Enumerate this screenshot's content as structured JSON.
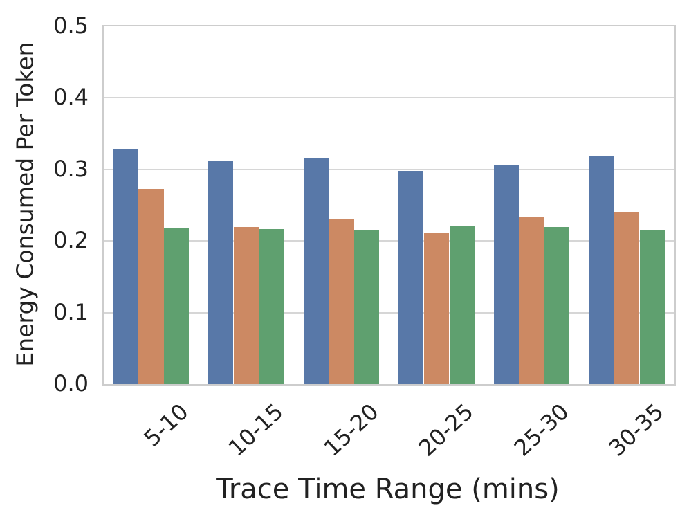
{
  "chart_data": {
    "type": "bar",
    "title": "",
    "xlabel": "Trace Time Range (mins)",
    "ylabel": "Energy Consumed Per Token",
    "categories": [
      "5-10",
      "10-15",
      "15-20",
      "20-25",
      "25-30",
      "30-35"
    ],
    "series": [
      {
        "name": "blue",
        "color": "#5878A8",
        "values": [
          0.328,
          0.312,
          0.316,
          0.298,
          0.306,
          0.318
        ]
      },
      {
        "name": "orange",
        "color": "#CC8963",
        "values": [
          0.273,
          0.22,
          0.23,
          0.211,
          0.234,
          0.24
        ]
      },
      {
        "name": "green",
        "color": "#5FA06F",
        "values": [
          0.218,
          0.217,
          0.216,
          0.222,
          0.22,
          0.215
        ]
      }
    ],
    "ylim": [
      0,
      0.5
    ],
    "yticks": [
      "0.0",
      "0.1",
      "0.2",
      "0.3",
      "0.4",
      "0.5"
    ],
    "grid": true,
    "legend_position": "none",
    "bar_group_fraction": 0.8,
    "x_tick_rotation_deg": 43,
    "colors": {
      "grid": "#d6d6d6",
      "spine": "#cdcdcd",
      "text": "#212121",
      "background": "#ffffff"
    }
  }
}
